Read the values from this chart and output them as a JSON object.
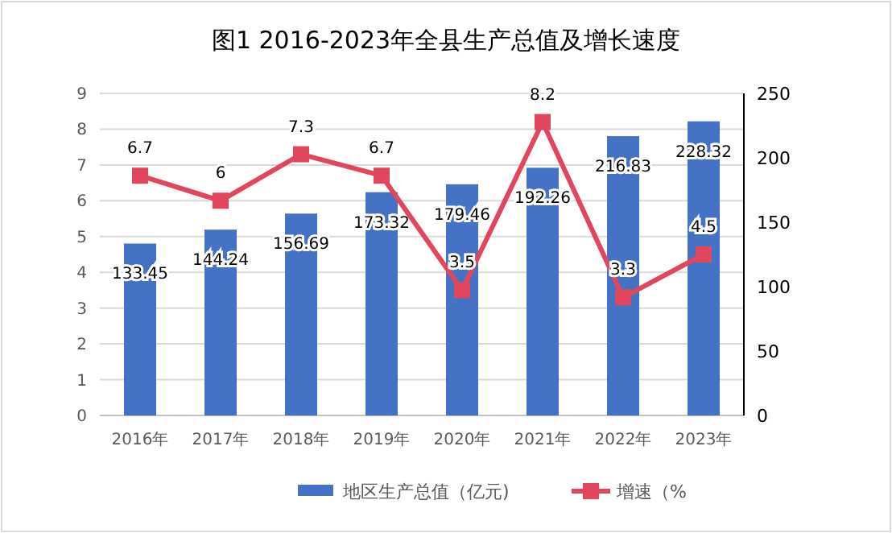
{
  "chart_data": {
    "type": "bar",
    "title": "图1   2016-2023年全县生产总值及增长速度",
    "categories": [
      "2016年",
      "2017年",
      "2018年",
      "2019年",
      "2020年",
      "2021年",
      "2022年",
      "2023年"
    ],
    "series": [
      {
        "name": "地区生产总值（亿元)",
        "axis": "y2",
        "color": "#4472c4",
        "values": [
          133.45,
          144.24,
          156.69,
          173.32,
          179.46,
          192.26,
          216.83,
          228.32
        ]
      },
      {
        "name": "增速（%",
        "type": "line",
        "axis": "y",
        "color": "#e0475d",
        "values": [
          6.7,
          6,
          7.3,
          6.7,
          3.5,
          8.2,
          3.3,
          4.5
        ]
      }
    ],
    "ylim": [
      0,
      9
    ],
    "yticks": [
      0,
      1,
      2,
      3,
      4,
      5,
      6,
      7,
      8,
      9
    ],
    "y2lim": [
      0,
      250
    ],
    "y2ticks": [
      0,
      50,
      100,
      150,
      200,
      250
    ],
    "grid": "y",
    "legend": "bottom",
    "data_labels": true,
    "marker": "square",
    "line_style": "solid"
  }
}
